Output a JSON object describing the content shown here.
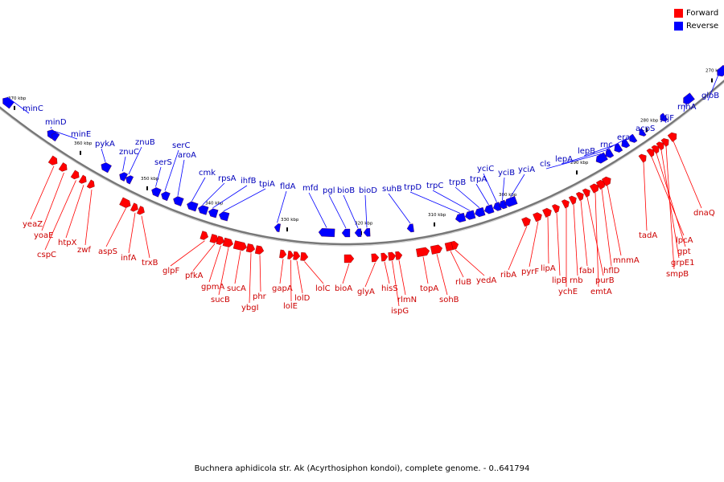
{
  "caption": "Buchnera aphidicola str. Ak (Acyrthosiphon kondoi), complete genome. - 0..641794",
  "legend": [
    {
      "label": "Forward",
      "color": "#ff0000"
    },
    {
      "label": "Reverse",
      "color": "#0000ff"
    }
  ],
  "colors": {
    "forward": "#ff0000",
    "forward_label": "#cc0000",
    "reverse": "#0000ff",
    "reverse_label": "#0000bb",
    "backbone": "#777777"
  },
  "ticks": [
    "370 kbp",
    "360 kbp",
    "350 kbp",
    "340 kbp",
    "330 kbp",
    "320 kbp",
    "310 kbp",
    "300 kbp",
    "290 kbp",
    "280 kbp",
    "270 kbp"
  ],
  "reverse_genes": [
    "minC",
    "minD",
    "minE",
    "pykA",
    "znuC",
    "znuB",
    "serS",
    "serC",
    "aroA",
    "cmk",
    "rpsA",
    "ihfB",
    "tpiA",
    "fldA",
    "mfd",
    "pgl",
    "bioB",
    "bioD",
    "suhB",
    "trpD",
    "trpC",
    "trpB",
    "trpA",
    "yciC",
    "yciB",
    "yciA",
    "cls",
    "lepA",
    "lepB",
    "rnc",
    "era",
    "acpS",
    "yfjF",
    "rnhA",
    "gloB"
  ],
  "forward_genes": [
    "yeaZ",
    "yoaE",
    "cspC",
    "htpX",
    "zwf",
    "aspS",
    "infA",
    "trxB",
    "glpF",
    "pfkA",
    "gpmA",
    "sucB",
    "sucA",
    "ybgI",
    "phr",
    "gapA",
    "lolE",
    "lolD",
    "lolC",
    "bioA",
    "glyA",
    "hisS",
    "ispG",
    "rlmN",
    "topA",
    "sohB",
    "rluB",
    "yedA",
    "ribA",
    "pyrF",
    "lipA",
    "lipB",
    "ychE",
    "rnb",
    "fabI",
    "purB",
    "emtA",
    "hflD",
    "mnmA",
    "tadA",
    "lpcA",
    "gpt",
    "grpE1",
    "smpB",
    "dnaQ"
  ]
}
